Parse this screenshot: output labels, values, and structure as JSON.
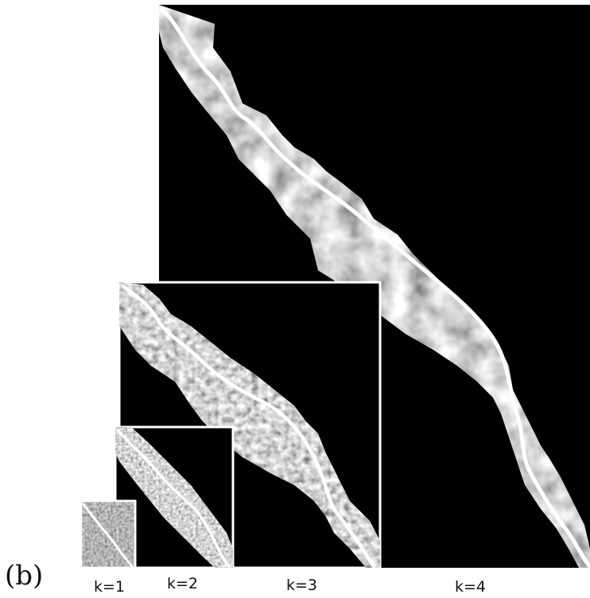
{
  "figure": {
    "panel_label": "(b)",
    "levels": [
      {
        "label": "k=1"
      },
      {
        "label": "k=2"
      },
      {
        "label": "k=3"
      },
      {
        "label": "k=4"
      }
    ]
  }
}
